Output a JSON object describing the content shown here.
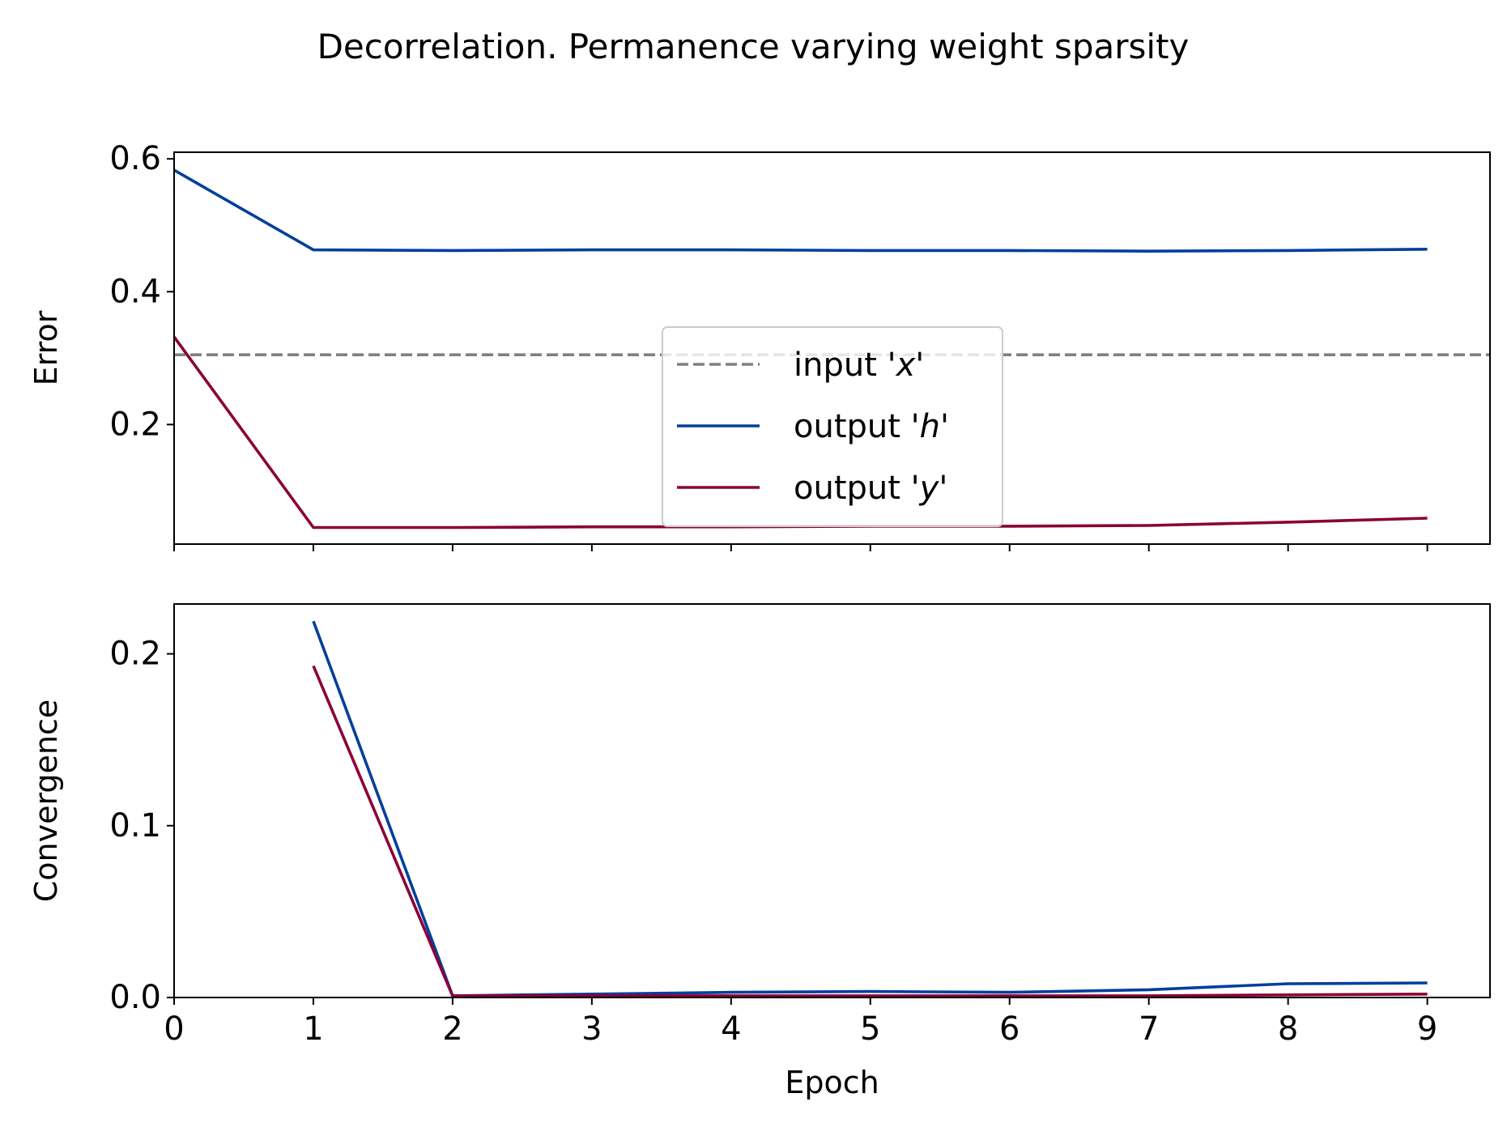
{
  "suptitle": "Decorrelation. Permanence varying weight sparsity",
  "colors": {
    "input_x": "#808080",
    "output_h": "#003f9c",
    "output_y": "#8b0038",
    "axes": "#000000",
    "background": "#ffffff"
  },
  "chart_data": [
    {
      "type": "line",
      "ylabel": "Error",
      "xlabel": "",
      "x": [
        0,
        1,
        2,
        3,
        4,
        5,
        6,
        7,
        8,
        9
      ],
      "xlim": [
        0,
        9.45
      ],
      "ylim": [
        0.02,
        0.61
      ],
      "yticks": [
        0.2,
        0.4,
        0.6
      ],
      "yticklabels": [
        "0.2",
        "0.4",
        "0.6"
      ],
      "xticks": [
        0,
        1,
        2,
        3,
        4,
        5,
        6,
        7,
        8,
        9
      ],
      "xticklabels_visible": false,
      "legend": {
        "location": "center-bottom",
        "entries": [
          {
            "prefix": "input '",
            "var": "x",
            "suffix": "'"
          },
          {
            "prefix": "output '",
            "var": "h",
            "suffix": "'"
          },
          {
            "prefix": "output '",
            "var": "y",
            "suffix": "'"
          }
        ]
      },
      "series": [
        {
          "key": "input_x",
          "style": "dashed",
          "hline": 0.305
        },
        {
          "key": "output_h",
          "style": "solid",
          "x": [
            0,
            1,
            2,
            3,
            4,
            5,
            6,
            7,
            8,
            9
          ],
          "values": [
            0.583,
            0.463,
            0.462,
            0.463,
            0.463,
            0.462,
            0.462,
            0.461,
            0.462,
            0.464
          ]
        },
        {
          "key": "output_y",
          "style": "solid",
          "x": [
            0,
            1,
            2,
            3,
            4,
            5,
            6,
            7,
            8,
            9
          ],
          "values": [
            0.332,
            0.045,
            0.045,
            0.046,
            0.046,
            0.047,
            0.047,
            0.048,
            0.053,
            0.059
          ]
        }
      ]
    },
    {
      "type": "line",
      "ylabel": "Convergence",
      "xlabel": "Epoch",
      "x": [
        0,
        1,
        2,
        3,
        4,
        5,
        6,
        7,
        8,
        9
      ],
      "xlim": [
        0,
        9.45
      ],
      "ylim": [
        0.0,
        0.229
      ],
      "yticks": [
        0.0,
        0.1,
        0.2
      ],
      "yticklabels": [
        "0.0",
        "0.1",
        "0.2"
      ],
      "xticks": [
        0,
        1,
        2,
        3,
        4,
        5,
        6,
        7,
        8,
        9
      ],
      "xticklabels": [
        "0",
        "1",
        "2",
        "3",
        "4",
        "5",
        "6",
        "7",
        "8",
        "9"
      ],
      "series": [
        {
          "key": "output_h",
          "style": "solid",
          "x": [
            1,
            2,
            3,
            4,
            5,
            6,
            7,
            8,
            9
          ],
          "values": [
            0.219,
            0.001,
            0.002,
            0.003,
            0.0035,
            0.003,
            0.0045,
            0.008,
            0.0085
          ]
        },
        {
          "key": "output_y",
          "style": "solid",
          "x": [
            1,
            2,
            3,
            4,
            5,
            6,
            7,
            8,
            9
          ],
          "values": [
            0.193,
            0.001,
            0.001,
            0.001,
            0.001,
            0.001,
            0.001,
            0.0015,
            0.002
          ]
        }
      ]
    }
  ]
}
